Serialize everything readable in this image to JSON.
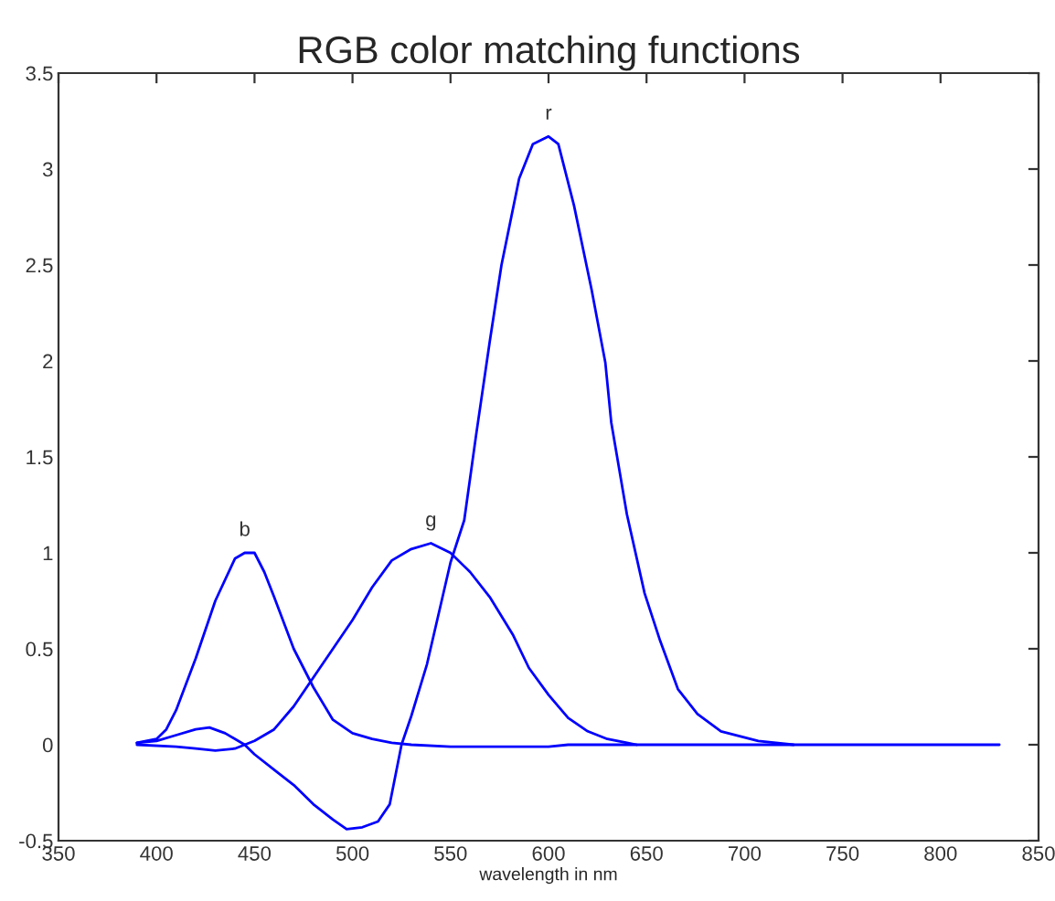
{
  "chart_data": {
    "type": "line",
    "title": "RGB color matching functions",
    "xlabel": "wavelength in nm",
    "xlim": [
      350,
      850
    ],
    "xticks": [
      350,
      400,
      450,
      500,
      550,
      600,
      650,
      700,
      750,
      800,
      850
    ],
    "ylim": [
      -0.5,
      3.5
    ],
    "yticks": [
      -0.5,
      0,
      0.5,
      1,
      1.5,
      2,
      2.5,
      3,
      3.5
    ],
    "grid": false,
    "marker": "none",
    "line_style": "solid",
    "series": [
      {
        "name": "b",
        "color": "#0000ff",
        "x": [
          390,
          400,
          405,
          410,
          420,
          430,
          440,
          445,
          450,
          455,
          460,
          470,
          480,
          490,
          500,
          510,
          520,
          530,
          550,
          600,
          610,
          700,
          830
        ],
        "values": [
          0.01,
          0.03,
          0.08,
          0.18,
          0.45,
          0.75,
          0.97,
          1.0,
          1.0,
          0.9,
          0.77,
          0.5,
          0.3,
          0.13,
          0.06,
          0.03,
          0.01,
          0.0,
          -0.01,
          -0.01,
          0.0,
          0.0,
          0.0
        ]
      },
      {
        "name": "g",
        "color": "#0000ff",
        "x": [
          390,
          410,
          420,
          430,
          440,
          450,
          460,
          470,
          480,
          490,
          500,
          510,
          520,
          530,
          540,
          550,
          560,
          570,
          582,
          590,
          600,
          610,
          620,
          630,
          640,
          645
        ],
        "values": [
          0.0,
          -0.01,
          -0.02,
          -0.03,
          -0.02,
          0.02,
          0.08,
          0.2,
          0.35,
          0.5,
          0.65,
          0.82,
          0.96,
          1.02,
          1.05,
          1.0,
          0.9,
          0.77,
          0.57,
          0.4,
          0.26,
          0.14,
          0.07,
          0.03,
          0.01,
          0.0
        ]
      },
      {
        "name": "r",
        "color": "#0000ff",
        "x": [
          390,
          400,
          410,
          420,
          427,
          435,
          445,
          450,
          460,
          470,
          480,
          490,
          497,
          505,
          513,
          519,
          525,
          530,
          538,
          550,
          557,
          563,
          570,
          576,
          585,
          592,
          600,
          605,
          613,
          622,
          629,
          632,
          640,
          649,
          657,
          666,
          676,
          688,
          707,
          725
        ],
        "values": [
          0.01,
          0.02,
          0.05,
          0.08,
          0.09,
          0.06,
          0.0,
          -0.05,
          -0.13,
          -0.21,
          -0.31,
          -0.39,
          -0.44,
          -0.43,
          -0.4,
          -0.31,
          0.0,
          0.15,
          0.42,
          0.95,
          1.17,
          1.61,
          2.1,
          2.5,
          2.95,
          3.13,
          3.17,
          3.13,
          2.81,
          2.37,
          1.99,
          1.68,
          1.2,
          0.79,
          0.54,
          0.29,
          0.16,
          0.07,
          0.02,
          0.0
        ]
      }
    ]
  }
}
